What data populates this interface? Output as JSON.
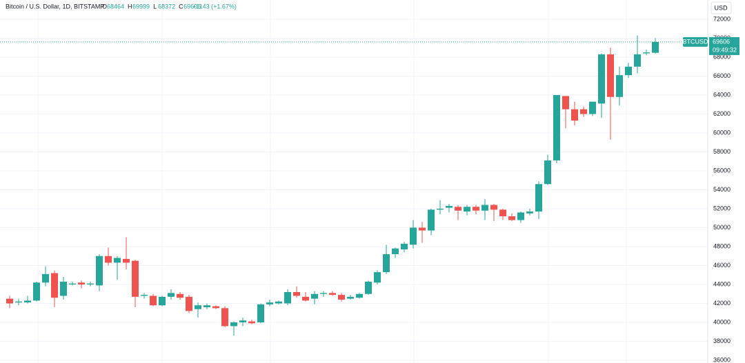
{
  "chart_data": {
    "type": "candlestick",
    "title": "Bitcoin / U.S. Dollar, 1D, BITSTAMP",
    "ohlc_labels": [
      "O",
      "H",
      "L",
      "C"
    ],
    "ohlc_values": [
      68464,
      69999,
      68372,
      69606
    ],
    "change": "+1143 (+1.67%)",
    "currency": "USD",
    "symbol": "BTCUSD",
    "last_price": 69606,
    "countdown": "09:49:32",
    "up_color": "#26a69a",
    "down_color": "#ef5350",
    "grid": true,
    "ylim": [
      36000,
      72000
    ],
    "yticks": [
      36000,
      38000,
      40000,
      42000,
      44000,
      46000,
      48000,
      50000,
      52000,
      54000,
      56000,
      58000,
      60000,
      62000,
      64000,
      66000,
      68000,
      70000,
      72000
    ],
    "series": {
      "open": [
        42500,
        42100,
        42100,
        42300,
        44200,
        45200,
        42800,
        44000,
        44200,
        44000,
        43900,
        47000,
        46300,
        46700,
        46500,
        42800,
        42800,
        41800,
        42700,
        43000,
        42700,
        41400,
        41600,
        41700,
        41500,
        39600,
        40000,
        40100,
        40000,
        41900,
        42000,
        42000,
        43200,
        42700,
        42500,
        43000,
        43100,
        42900,
        42500,
        42600,
        43000,
        44200,
        45300,
        47200,
        47700,
        48200,
        50000,
        49700,
        51900,
        52100,
        52200,
        51700,
        52200,
        51800,
        52400,
        51900,
        51200,
        50800,
        51500,
        51700,
        54600,
        57100,
        63900,
        62500,
        62500,
        62000,
        63100,
        68300,
        63800,
        66100,
        67000,
        68400,
        68464
      ],
      "high": [
        42800,
        42500,
        42800,
        44300,
        45900,
        45500,
        44800,
        44300,
        44400,
        44300,
        47200,
        47900,
        47000,
        49000,
        46600,
        43100,
        43000,
        42800,
        43500,
        43200,
        42900,
        42100,
        42000,
        41800,
        41700,
        40100,
        40500,
        40300,
        42000,
        42400,
        42300,
        43500,
        43800,
        43200,
        43300,
        43300,
        43300,
        43100,
        42900,
        43100,
        44400,
        45500,
        48200,
        47900,
        48500,
        50800,
        50600,
        52000,
        52900,
        52500,
        52400,
        52400,
        52400,
        53000,
        52500,
        52000,
        51500,
        51700,
        52000,
        54900,
        57700,
        64000,
        63900,
        63300,
        62800,
        63300,
        68400,
        69000,
        67000,
        67400,
        70300,
        68800,
        69999
      ],
      "low": [
        41500,
        41800,
        42000,
        42200,
        43800,
        41600,
        42400,
        43900,
        43600,
        43800,
        43300,
        46000,
        44500,
        45600,
        41600,
        42500,
        41700,
        41700,
        42400,
        42400,
        41000,
        40500,
        41400,
        41400,
        39500,
        38600,
        39600,
        39800,
        39900,
        41700,
        41900,
        41800,
        42600,
        42200,
        41900,
        42700,
        42800,
        42200,
        42400,
        42500,
        42900,
        44000,
        45100,
        46800,
        47400,
        47800,
        48400,
        49200,
        51400,
        51600,
        50800,
        51300,
        51400,
        50800,
        50700,
        50800,
        50700,
        50500,
        51300,
        50900,
        54500,
        56800,
        60500,
        60800,
        61700,
        61800,
        61600,
        59300,
        62900,
        65800,
        66300,
        68200,
        68372
      ],
      "close": [
        42000,
        42200,
        42300,
        44200,
        45100,
        42600,
        44300,
        44100,
        44000,
        44100,
        47000,
        46300,
        46800,
        46300,
        42700,
        42900,
        41800,
        42700,
        43100,
        42600,
        41200,
        41800,
        41800,
        41500,
        39600,
        40000,
        40200,
        39900,
        41900,
        42100,
        42200,
        43200,
        42800,
        42300,
        43000,
        43100,
        42900,
        42400,
        42700,
        43000,
        44300,
        45300,
        47200,
        47800,
        48300,
        50000,
        49700,
        51900,
        52000,
        52300,
        51800,
        52200,
        51800,
        52400,
        51900,
        51200,
        50800,
        51600,
        51700,
        54600,
        57100,
        64000,
        62500,
        61300,
        62000,
        63300,
        68300,
        63800,
        66100,
        67000,
        68300,
        68500,
        69606
      ]
    }
  }
}
